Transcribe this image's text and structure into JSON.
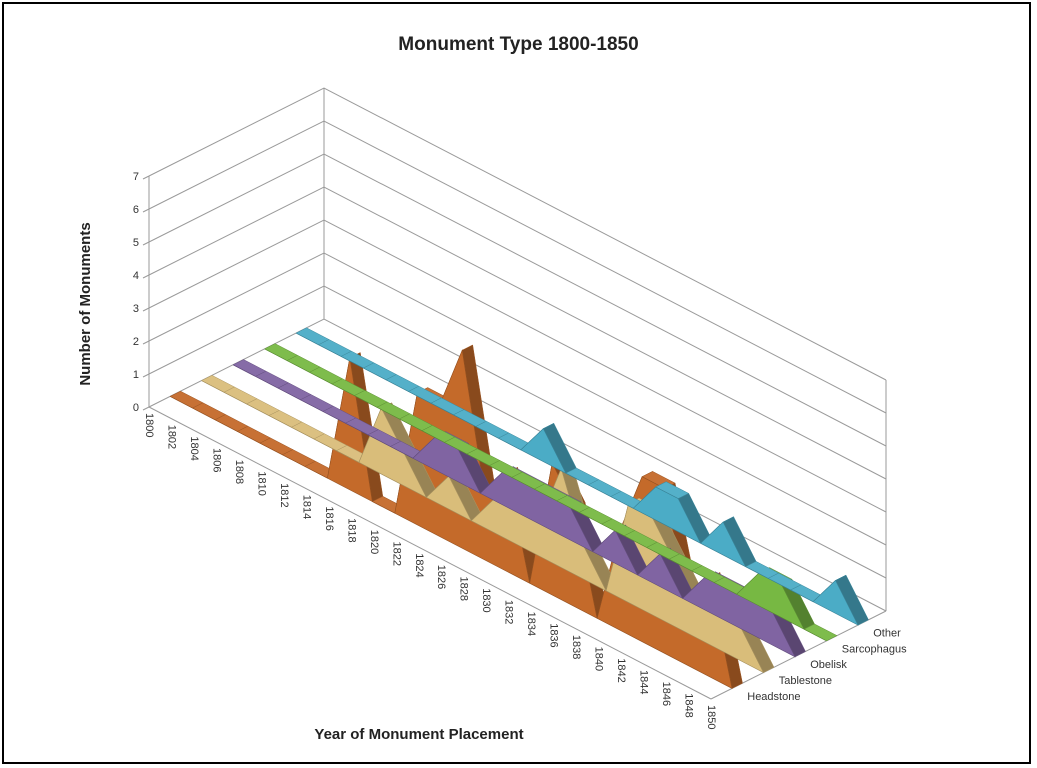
{
  "chart_data": {
    "type": "area",
    "title": "Monument Type 1800-1850",
    "xlabel": "Year of Monument Placement",
    "ylabel": "Number of Monuments",
    "ylim": [
      0,
      7
    ],
    "yticks": [
      "0",
      "1",
      "2",
      "3",
      "4",
      "5",
      "6",
      "7"
    ],
    "categories": [
      "1800",
      "1802",
      "1804",
      "1806",
      "1808",
      "1810",
      "1812",
      "1814",
      "1816",
      "1818",
      "1820",
      "1822",
      "1824",
      "1826",
      "1828",
      "1830",
      "1832",
      "1834",
      "1836",
      "1838",
      "1840",
      "1842",
      "1844",
      "1846",
      "1848",
      "1850"
    ],
    "series": [
      {
        "name": "Other",
        "color": "#4bacc6",
        "values": [
          0,
          0,
          0,
          0,
          0,
          0,
          0,
          0,
          0,
          0,
          0,
          1,
          0,
          0,
          0,
          0,
          1,
          1,
          0,
          1,
          0,
          0,
          0,
          0,
          1,
          0
        ]
      },
      {
        "name": "Sarcophagus",
        "color": "#77b843",
        "values": [
          0,
          0,
          0,
          0,
          0,
          0,
          0,
          0,
          0,
          0,
          0,
          0,
          0,
          0,
          0,
          0,
          0,
          0,
          0,
          0,
          0,
          0,
          1,
          1,
          0,
          0
        ]
      },
      {
        "name": "Obelisk",
        "color": "#8064a2",
        "values": [
          0,
          0,
          0,
          0,
          0,
          0,
          0,
          0,
          0,
          1,
          1,
          0,
          1,
          1,
          1,
          1,
          0,
          1,
          0,
          1,
          0,
          1,
          1,
          1,
          1,
          0
        ]
      },
      {
        "name": "Tablestone",
        "color": "#d9bd7a",
        "values": [
          0,
          0,
          0,
          0,
          0,
          0,
          0,
          0,
          2,
          1,
          0,
          1,
          0,
          1,
          1,
          1,
          3,
          1,
          0,
          3,
          3,
          2,
          1,
          1,
          1,
          0
        ]
      },
      {
        "name": "Headstone",
        "color": "#c46a2a",
        "values": [
          0,
          0,
          0,
          0,
          0,
          0,
          0,
          0,
          4,
          0,
          0,
          4,
          4,
          6,
          2,
          3,
          0,
          4,
          3,
          0,
          3,
          5,
          5,
          2,
          3,
          0
        ]
      }
    ]
  }
}
